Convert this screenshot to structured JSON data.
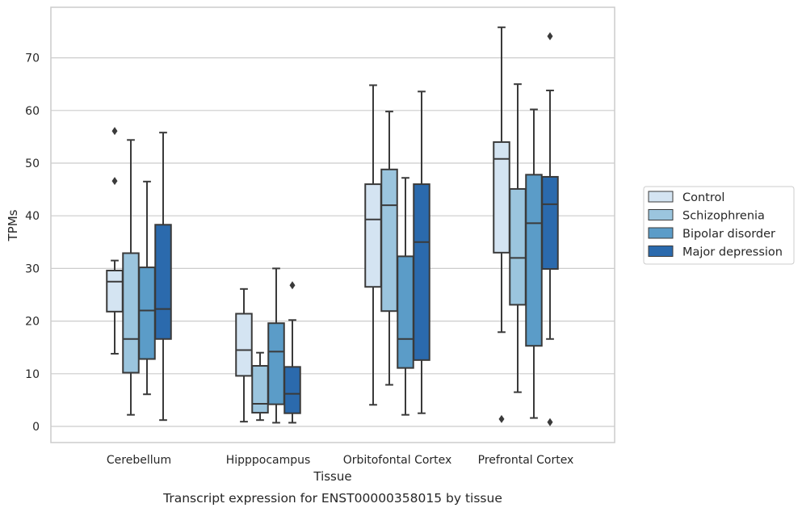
{
  "chart_data": {
    "type": "box",
    "title": "",
    "caption": "Transcript expression for ENST00000358015 by tissue",
    "xlabel": "Tissue",
    "ylabel": "TPMs",
    "ylim": [
      -3,
      80
    ],
    "yticks": [
      0,
      10,
      20,
      30,
      40,
      50,
      60,
      70
    ],
    "grid": "horizontal",
    "legend_position": "right",
    "categories": [
      "Cerebellum",
      "Hipppocampus",
      "Orbitofontal Cortex",
      "Prefrontal Cortex"
    ],
    "series": [
      {
        "name": "Control",
        "color": "#d4e4f2",
        "boxes": [
          {
            "min": 13.8,
            "q1": 21.8,
            "median": 27.5,
            "q3": 29.6,
            "max": 31.5,
            "outliers": [
              46.6,
              56.1
            ]
          },
          {
            "min": 0.9,
            "q1": 9.6,
            "median": 14.5,
            "q3": 21.4,
            "max": 26.1,
            "outliers": []
          },
          {
            "min": 4.1,
            "q1": 26.5,
            "median": 39.3,
            "q3": 46.0,
            "max": 64.8,
            "outliers": []
          },
          {
            "min": 17.9,
            "q1": 33.0,
            "median": 50.8,
            "q3": 54.0,
            "max": 75.8,
            "outliers": [
              1.4
            ]
          }
        ]
      },
      {
        "name": "Schizophrenia",
        "color": "#9bc5de",
        "boxes": [
          {
            "min": 2.2,
            "q1": 10.2,
            "median": 16.6,
            "q3": 32.9,
            "max": 54.4,
            "outliers": []
          },
          {
            "min": 1.2,
            "q1": 2.6,
            "median": 4.3,
            "q3": 11.5,
            "max": 14.0,
            "outliers": []
          },
          {
            "min": 7.9,
            "q1": 21.9,
            "median": 42.0,
            "q3": 48.8,
            "max": 59.8,
            "outliers": []
          },
          {
            "min": 6.5,
            "q1": 23.1,
            "median": 32.0,
            "q3": 45.1,
            "max": 65.0,
            "outliers": []
          }
        ]
      },
      {
        "name": "Bipolar disorder",
        "color": "#5b9cc8",
        "boxes": [
          {
            "min": 6.1,
            "q1": 12.8,
            "median": 22.0,
            "q3": 30.2,
            "max": 46.5,
            "outliers": []
          },
          {
            "min": 0.7,
            "q1": 4.2,
            "median": 14.2,
            "q3": 19.6,
            "max": 30.0,
            "outliers": []
          },
          {
            "min": 2.2,
            "q1": 11.1,
            "median": 16.6,
            "q3": 32.3,
            "max": 47.2,
            "outliers": []
          },
          {
            "min": 1.6,
            "q1": 15.3,
            "median": 38.6,
            "q3": 47.8,
            "max": 60.2,
            "outliers": []
          }
        ]
      },
      {
        "name": "Major depression",
        "color": "#2b6aad",
        "boxes": [
          {
            "min": 1.2,
            "q1": 16.6,
            "median": 22.3,
            "q3": 38.3,
            "max": 55.8,
            "outliers": []
          },
          {
            "min": 0.7,
            "q1": 2.5,
            "median": 6.2,
            "q3": 11.3,
            "max": 20.2,
            "outliers": [
              26.8
            ]
          },
          {
            "min": 2.5,
            "q1": 12.6,
            "median": 35.0,
            "q3": 46.0,
            "max": 63.6,
            "outliers": []
          },
          {
            "min": 16.6,
            "q1": 29.9,
            "median": 42.2,
            "q3": 47.4,
            "max": 63.8,
            "outliers": [
              74.1,
              0.8
            ]
          }
        ]
      }
    ]
  }
}
